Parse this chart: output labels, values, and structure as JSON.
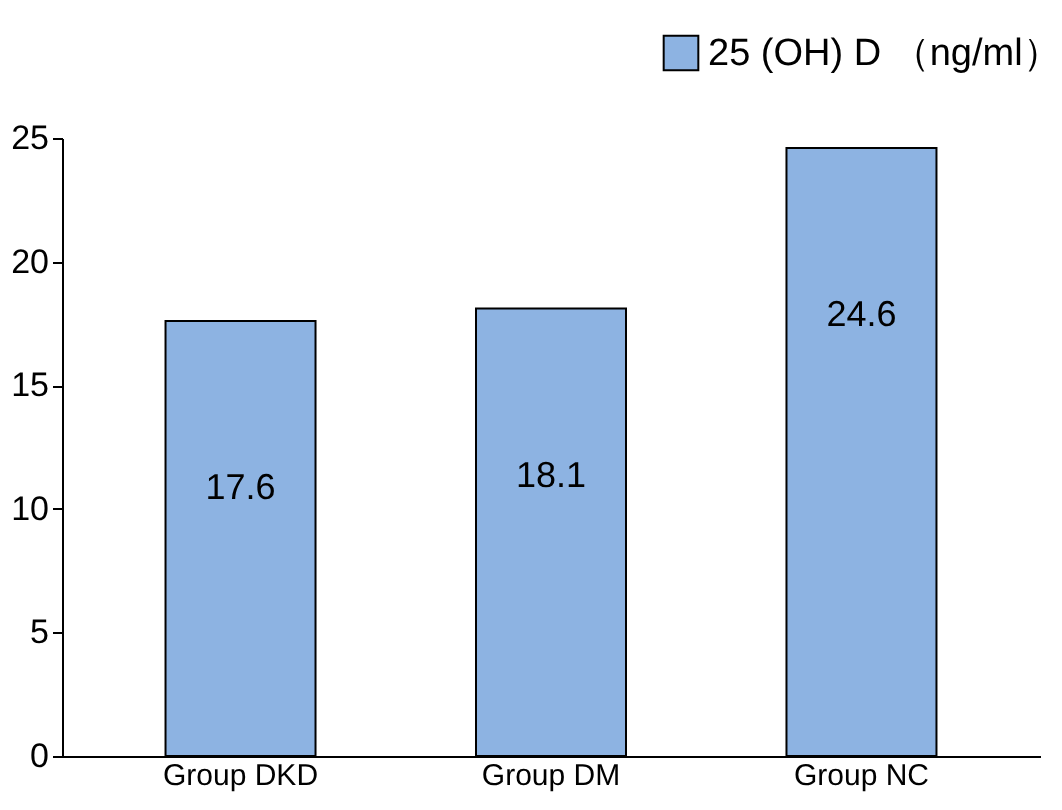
{
  "chart_data": {
    "type": "bar",
    "categories": [
      "Group DKD",
      "Group DM",
      "Group NC"
    ],
    "series": [
      {
        "name": "25 (OH) D （ng/ml）",
        "color": "#8db3e2",
        "values": [
          17.6,
          18.1,
          24.6
        ]
      }
    ],
    "ylim": [
      0,
      25
    ],
    "yticks": [
      0,
      5,
      10,
      15,
      20,
      25
    ],
    "grid": false,
    "legend": "top right",
    "data_labels": true
  }
}
